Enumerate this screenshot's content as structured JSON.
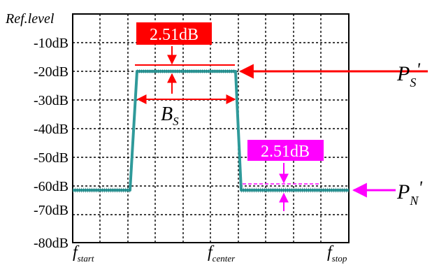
{
  "axis": {
    "ref_label": "Ref.level",
    "y_ticks": [
      "-10dB",
      "-20dB",
      "-30dB",
      "-40dB",
      "-50dB",
      "-60dB",
      "-70dB",
      "-80dB"
    ],
    "x_ticks": [
      {
        "main": "f",
        "sub": "start"
      },
      {
        "main": "f",
        "sub": "center"
      },
      {
        "main": "f",
        "sub": "stop"
      }
    ]
  },
  "annotations": {
    "signal_delta": "2.51dB",
    "noise_delta": "2.51dB",
    "bandwidth": {
      "main": "B",
      "sub": "S"
    },
    "signal_power": {
      "main": "P",
      "sub": "S",
      "prime": "'"
    },
    "noise_power": {
      "main": "P",
      "sub": "N",
      "prime": "'"
    }
  },
  "trace": {
    "signal_level": "-20dB",
    "noise_level": "-62.5dB"
  },
  "colors": {
    "trace": "#2f9a9a",
    "signal_annotation": "#ff0000",
    "noise_annotation": "#ff00ff",
    "grid": "#000000"
  }
}
